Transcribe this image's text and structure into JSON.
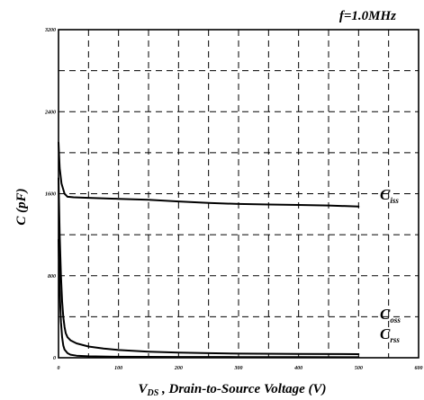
{
  "chart_data": {
    "type": "line",
    "annotation_top_right": "f=1.0MHz",
    "ylabel": "C (pF)",
    "xlabel": {
      "symbol": "V",
      "subscript": "DS",
      "rest": " , Drain-to-Source Voltage (V)"
    },
    "xlim": [
      0,
      600
    ],
    "ylim": [
      0,
      3200
    ],
    "xticks": [
      0,
      100,
      200,
      300,
      400,
      500,
      600
    ],
    "xtick_labels": [
      "0",
      "100",
      "200",
      "300",
      "400",
      "500",
      "600"
    ],
    "yticks": [
      0,
      800,
      1600,
      2400,
      3200
    ],
    "ytick_labels": [
      "0",
      "800",
      "1600",
      "2400",
      "3200"
    ],
    "xgrid": [
      50,
      100,
      150,
      200,
      250,
      300,
      350,
      400,
      450,
      500,
      550
    ],
    "ygrid": [
      400,
      800,
      1200,
      1600,
      2000,
      2400,
      2800
    ],
    "series": [
      {
        "label_main": "C",
        "label_sub": "iss",
        "x": [
          0,
          2,
          5,
          10,
          15,
          25,
          50,
          100,
          150,
          200,
          250,
          300,
          350,
          400,
          450,
          500
        ],
        "y": [
          2100,
          1850,
          1700,
          1600,
          1570,
          1565,
          1560,
          1550,
          1540,
          1525,
          1510,
          1500,
          1495,
          1490,
          1485,
          1475
        ]
      },
      {
        "label_main": "C",
        "label_sub": "oss",
        "x": [
          0,
          2,
          4,
          6,
          8,
          10,
          12,
          15,
          20,
          30,
          50,
          75,
          100,
          150,
          200,
          250,
          300,
          400,
          500
        ],
        "y": [
          1750,
          1200,
          800,
          550,
          400,
          300,
          240,
          200,
          170,
          140,
          110,
          90,
          75,
          60,
          50,
          45,
          40,
          38,
          35
        ]
      },
      {
        "label_main": "C",
        "label_sub": "rss",
        "x": [
          0,
          2,
          4,
          6,
          8,
          10,
          15,
          20,
          30,
          50,
          100,
          200,
          300,
          400,
          500
        ],
        "y": [
          1150,
          650,
          350,
          200,
          120,
          80,
          45,
          30,
          20,
          14,
          10,
          8,
          7,
          6,
          5
        ]
      }
    ]
  }
}
